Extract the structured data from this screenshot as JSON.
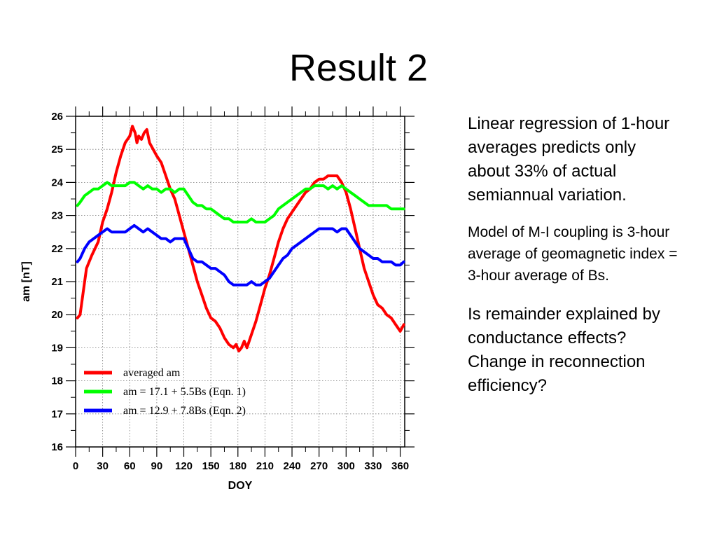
{
  "slide": {
    "title": "Result 2",
    "notes": [
      "Linear regression of 1-hour averages predicts only about 33% of actual semiannual variation.",
      "Model of M-I coupling is 3-hour average of geomagnetic index = 3-hour average of Bs.",
      "Is remainder explained by conductance effects?  Change in reconnection efficiency?"
    ]
  },
  "chart_data": {
    "type": "line",
    "xlabel": "DOY",
    "ylabel": "am [nT]",
    "xlim": [
      0,
      365
    ],
    "ylim": [
      16,
      26
    ],
    "xticks": [
      0,
      30,
      60,
      90,
      120,
      150,
      180,
      210,
      240,
      270,
      300,
      330,
      360
    ],
    "yticks": [
      16,
      17,
      18,
      19,
      20,
      21,
      22,
      23,
      24,
      25,
      26
    ],
    "grid": true,
    "legend_position": "bottom-left",
    "series": [
      {
        "name": "averaged am",
        "color": "#ff0000",
        "x": [
          2,
          5,
          8,
          12,
          18,
          25,
          30,
          35,
          40,
          45,
          50,
          55,
          60,
          63,
          66,
          68,
          70,
          73,
          76,
          79,
          82,
          86,
          90,
          95,
          100,
          105,
          110,
          115,
          120,
          125,
          130,
          135,
          140,
          145,
          150,
          155,
          160,
          165,
          170,
          175,
          178,
          181,
          184,
          187,
          190,
          195,
          200,
          205,
          210,
          215,
          220,
          225,
          230,
          235,
          240,
          245,
          250,
          255,
          260,
          265,
          270,
          275,
          280,
          285,
          290,
          295,
          300,
          305,
          310,
          315,
          320,
          325,
          330,
          335,
          340,
          345,
          350,
          355,
          360,
          364
        ],
        "values": [
          19.9,
          20.0,
          20.6,
          21.4,
          21.8,
          22.2,
          22.8,
          23.2,
          23.7,
          24.3,
          24.8,
          25.2,
          25.4,
          25.7,
          25.5,
          25.2,
          25.4,
          25.3,
          25.5,
          25.6,
          25.2,
          25.0,
          24.8,
          24.6,
          24.2,
          23.8,
          23.5,
          23.0,
          22.5,
          22.0,
          21.5,
          21.0,
          20.6,
          20.2,
          19.9,
          19.8,
          19.6,
          19.3,
          19.1,
          19.0,
          19.1,
          18.9,
          19.0,
          19.2,
          19.0,
          19.4,
          19.8,
          20.3,
          20.8,
          21.2,
          21.7,
          22.2,
          22.6,
          22.9,
          23.1,
          23.3,
          23.5,
          23.7,
          23.8,
          24.0,
          24.1,
          24.1,
          24.2,
          24.2,
          24.2,
          24.0,
          23.7,
          23.2,
          22.6,
          22.0,
          21.4,
          21.0,
          20.6,
          20.3,
          20.2,
          20.0,
          19.9,
          19.7,
          19.5,
          19.7
        ]
      },
      {
        "name": "am = 17.1 + 5.5Bs (Eqn. 1)",
        "color": "#00ff00",
        "x": [
          2,
          5,
          10,
          15,
          20,
          25,
          30,
          35,
          40,
          45,
          50,
          55,
          60,
          65,
          70,
          75,
          80,
          85,
          90,
          95,
          100,
          105,
          110,
          115,
          120,
          125,
          130,
          135,
          140,
          145,
          150,
          155,
          160,
          165,
          170,
          175,
          180,
          185,
          190,
          195,
          200,
          205,
          210,
          215,
          220,
          225,
          230,
          235,
          240,
          245,
          250,
          255,
          260,
          265,
          270,
          275,
          280,
          285,
          290,
          295,
          300,
          305,
          310,
          315,
          320,
          325,
          330,
          335,
          340,
          345,
          350,
          355,
          360,
          364
        ],
        "values": [
          23.3,
          23.4,
          23.6,
          23.7,
          23.8,
          23.8,
          23.9,
          24.0,
          23.9,
          23.9,
          23.9,
          23.9,
          24.0,
          24.0,
          23.9,
          23.8,
          23.9,
          23.8,
          23.8,
          23.7,
          23.8,
          23.8,
          23.7,
          23.8,
          23.8,
          23.6,
          23.4,
          23.3,
          23.3,
          23.2,
          23.2,
          23.1,
          23.0,
          22.9,
          22.9,
          22.8,
          22.8,
          22.8,
          22.8,
          22.9,
          22.8,
          22.8,
          22.8,
          22.9,
          23.0,
          23.2,
          23.3,
          23.4,
          23.5,
          23.6,
          23.7,
          23.8,
          23.8,
          23.9,
          23.9,
          23.9,
          23.8,
          23.9,
          23.8,
          23.9,
          23.8,
          23.7,
          23.6,
          23.5,
          23.4,
          23.3,
          23.3,
          23.3,
          23.3,
          23.3,
          23.2,
          23.2,
          23.2,
          23.2
        ]
      },
      {
        "name": "am = 12.9 + 7.8Bs (Eqn. 2)",
        "color": "#0000ff",
        "x": [
          2,
          5,
          10,
          15,
          20,
          25,
          30,
          35,
          40,
          45,
          50,
          55,
          60,
          65,
          70,
          75,
          80,
          85,
          90,
          95,
          100,
          105,
          110,
          115,
          120,
          125,
          130,
          135,
          140,
          145,
          150,
          155,
          160,
          165,
          170,
          175,
          180,
          185,
          190,
          195,
          200,
          205,
          210,
          215,
          220,
          225,
          230,
          235,
          240,
          245,
          250,
          255,
          260,
          265,
          270,
          275,
          280,
          285,
          290,
          295,
          300,
          305,
          310,
          315,
          320,
          325,
          330,
          335,
          340,
          345,
          350,
          355,
          360,
          364
        ],
        "values": [
          21.6,
          21.7,
          22.0,
          22.2,
          22.3,
          22.4,
          22.5,
          22.6,
          22.5,
          22.5,
          22.5,
          22.5,
          22.6,
          22.7,
          22.6,
          22.5,
          22.6,
          22.5,
          22.4,
          22.3,
          22.3,
          22.2,
          22.3,
          22.3,
          22.3,
          22.0,
          21.7,
          21.6,
          21.6,
          21.5,
          21.4,
          21.4,
          21.3,
          21.2,
          21.0,
          20.9,
          20.9,
          20.9,
          20.9,
          21.0,
          20.9,
          20.9,
          21.0,
          21.1,
          21.3,
          21.5,
          21.7,
          21.8,
          22.0,
          22.1,
          22.2,
          22.3,
          22.4,
          22.5,
          22.6,
          22.6,
          22.6,
          22.6,
          22.5,
          22.6,
          22.6,
          22.4,
          22.2,
          22.0,
          21.9,
          21.8,
          21.7,
          21.7,
          21.6,
          21.6,
          21.6,
          21.5,
          21.5,
          21.6
        ]
      }
    ]
  }
}
